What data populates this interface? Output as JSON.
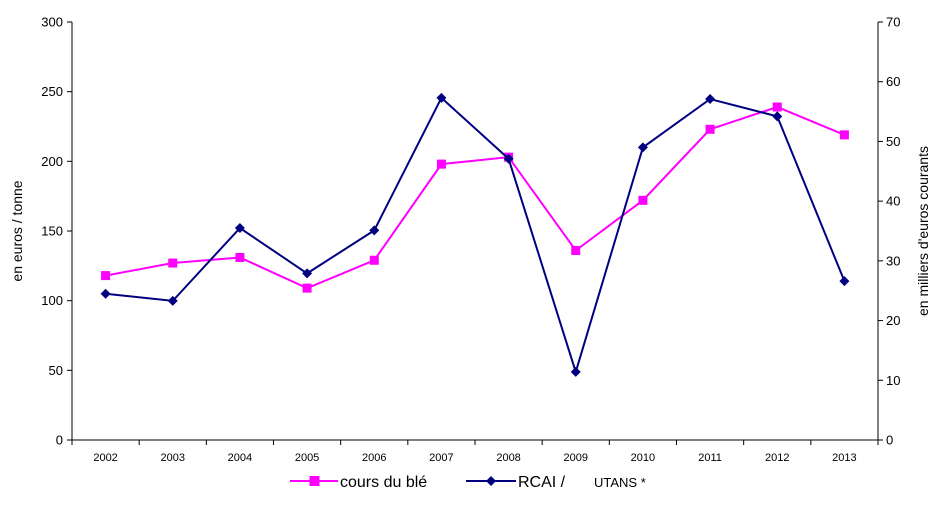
{
  "chart_data": {
    "type": "line",
    "categories": [
      "2002",
      "2003",
      "2004",
      "2005",
      "2006",
      "2007",
      "2008",
      "2009",
      "2010",
      "2011",
      "2012",
      "2013"
    ],
    "y_left": {
      "label": "en euros / tonne",
      "ylim": [
        0,
        300
      ],
      "ticks": [
        "0",
        "50",
        "100",
        "150",
        "200",
        "250",
        "300"
      ]
    },
    "y_right": {
      "label": "en milliers d'euros  courants",
      "ylim": [
        0,
        70
      ],
      "ticks": [
        "0",
        "10",
        "20",
        "30",
        "40",
        "50",
        "60",
        "70"
      ]
    },
    "series": [
      {
        "name": "cours du blé",
        "axis": "left",
        "color": "#ff00ff",
        "marker": "square",
        "values": [
          118,
          127,
          131,
          109,
          129,
          198,
          203,
          136,
          172,
          223,
          239,
          219
        ]
      },
      {
        "name": "RCAI /",
        "name_suffix": "UTANS *",
        "axis": "right",
        "color": "#000080",
        "marker": "diamond",
        "values": [
          24.5,
          23.3,
          35.5,
          27.9,
          35.1,
          57.3,
          47.1,
          11.4,
          49.0,
          57.1,
          54.2,
          26.6
        ]
      }
    ],
    "grid": false,
    "legend_position": "bottom-center"
  }
}
